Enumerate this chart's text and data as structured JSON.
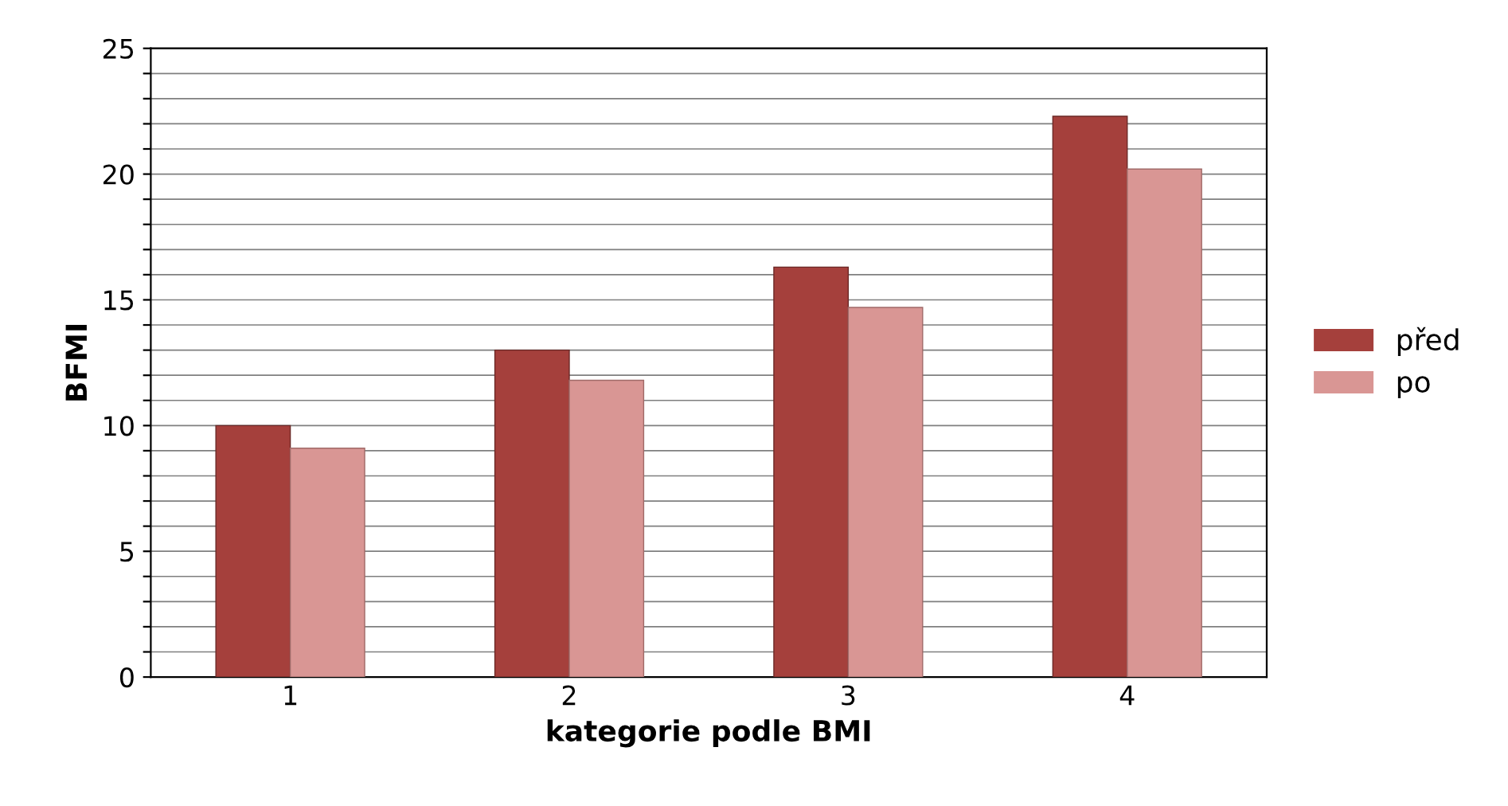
{
  "chart_data": {
    "type": "bar",
    "xlabel": "kategorie podle BMI",
    "ylabel": "BFMI",
    "categories": [
      "1",
      "2",
      "3",
      "4"
    ],
    "series": [
      {
        "name": "před",
        "color": "#a5403c",
        "values": [
          10,
          13,
          16.3,
          22.3
        ]
      },
      {
        "name": "po",
        "color": "#d99694",
        "values": [
          9.1,
          11.8,
          14.7,
          20.2
        ]
      }
    ],
    "ylim": [
      0,
      25
    ],
    "yticks": [
      0,
      {
        "value": 1,
        "label": null
      },
      {
        "value": 2,
        "label": null
      },
      {
        "value": 3,
        "label": null
      },
      {
        "value": 4,
        "label": null
      },
      5,
      {
        "value": 6,
        "label": null
      },
      {
        "value": 7,
        "label": null
      },
      {
        "value": 8,
        "label": null
      },
      {
        "value": 9,
        "label": null
      },
      10,
      {
        "value": 11,
        "label": null
      },
      {
        "value": 12,
        "label": null
      },
      {
        "value": 13,
        "label": null
      },
      {
        "value": 14,
        "label": null
      },
      15,
      {
        "value": 16,
        "label": null
      },
      {
        "value": 17,
        "label": null
      },
      {
        "value": 18,
        "label": null
      },
      {
        "value": 19,
        "label": null
      },
      20,
      {
        "value": 21,
        "label": null
      },
      {
        "value": 22,
        "label": null
      },
      {
        "value": 23,
        "label": null
      },
      {
        "value": 24,
        "label": null
      },
      25
    ],
    "grid": "y",
    "legend": "right"
  }
}
